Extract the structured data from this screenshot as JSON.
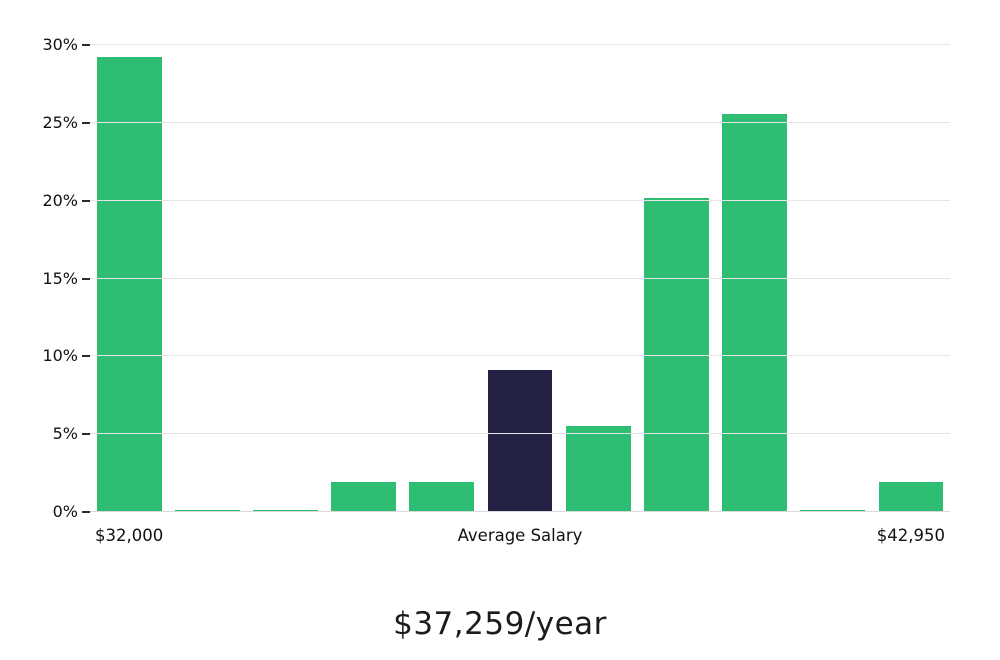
{
  "chart_data": {
    "type": "bar",
    "title": "$37,259/year",
    "values": [
      29.2,
      0.1,
      0.1,
      1.9,
      1.9,
      9.1,
      5.5,
      20.2,
      25.6,
      0.1,
      1.9
    ],
    "highlight_index": 5,
    "ylim": [
      0,
      30
    ],
    "y_ticks": [
      0,
      5,
      10,
      15,
      20,
      25,
      30
    ],
    "y_tick_suffix": "%",
    "x_labels": [
      {
        "text": "$32,000",
        "bar_index": 0
      },
      {
        "text": "Average Salary",
        "bar_index": 5
      },
      {
        "text": "$42,950",
        "bar_index": 10
      }
    ],
    "grid": true,
    "legend_position": "none",
    "colors": {
      "bar": "#2dbe74",
      "highlight": "#232144",
      "grid": "#e5e5e5",
      "baseline": "#d9d9d9",
      "tick": "#2b2b2b",
      "text": "#111111"
    }
  }
}
